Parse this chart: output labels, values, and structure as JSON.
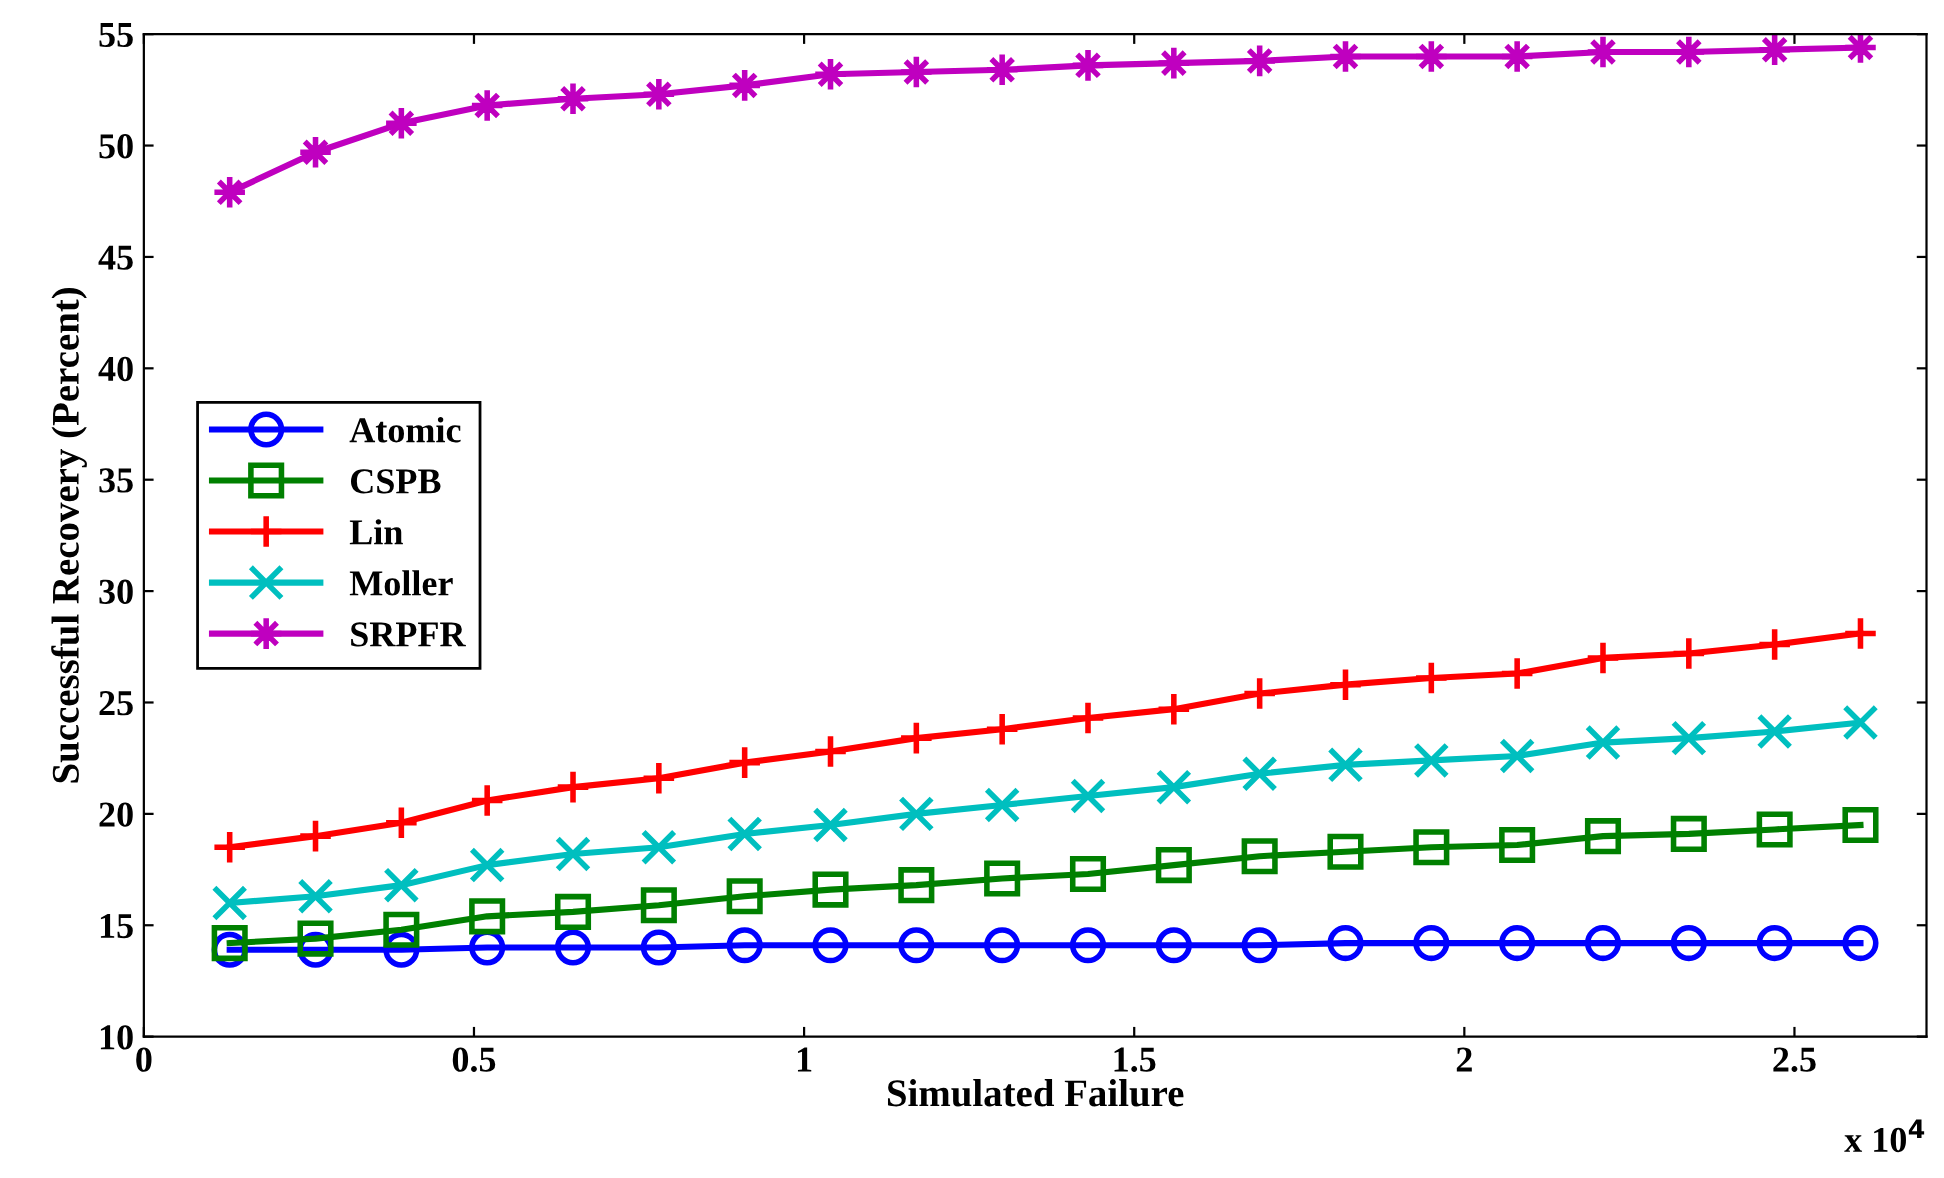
{
  "chart_data": {
    "type": "line",
    "xlabel": "Simulated Failure",
    "ylabel": "Successful Recovery (Percent)",
    "annotations": [
      "x 10$^{4}$"
    ],
    "x": [
      0.13,
      0.26,
      0.39,
      0.52,
      0.65,
      0.78,
      0.91,
      1.04,
      1.17,
      1.3,
      1.43,
      1.56,
      1.69,
      1.82,
      1.95,
      2.08,
      2.21,
      2.34,
      2.47,
      2.6
    ],
    "xlim": [
      0,
      2.7
    ],
    "xticks": [
      0,
      0.5,
      1,
      1.5,
      2,
      2.5
    ],
    "ylim": [
      10,
      55
    ],
    "yticks": [
      10,
      15,
      20,
      25,
      30,
      35,
      40,
      45,
      50,
      55
    ],
    "grid": false,
    "legend": "left",
    "line_style": "solid",
    "series": [
      {
        "name": "Atomic",
        "color": "#0000ff",
        "marker": "circle",
        "values": [
          13.9,
          13.9,
          13.9,
          14.0,
          14.0,
          14.0,
          14.1,
          14.1,
          14.1,
          14.1,
          14.1,
          14.1,
          14.1,
          14.2,
          14.2,
          14.2,
          14.2,
          14.2,
          14.2,
          14.2
        ]
      },
      {
        "name": "CSPB",
        "color": "#008000",
        "marker": "square",
        "values": [
          14.2,
          14.4,
          14.8,
          15.4,
          15.6,
          15.9,
          16.3,
          16.6,
          16.8,
          17.1,
          17.3,
          17.7,
          18.1,
          18.3,
          18.5,
          18.6,
          19.0,
          19.1,
          19.3,
          19.5
        ]
      },
      {
        "name": "Lin",
        "color": "#ff0000",
        "marker": "cross",
        "values": [
          18.5,
          19.0,
          19.6,
          20.6,
          21.2,
          21.6,
          22.3,
          22.8,
          23.4,
          23.8,
          24.3,
          24.7,
          25.4,
          25.8,
          26.1,
          26.3,
          27.0,
          27.2,
          27.6,
          28.1
        ]
      },
      {
        "name": "Moller",
        "color": "#00bfbf",
        "marker": "x",
        "values": [
          16.0,
          16.3,
          16.8,
          17.7,
          18.2,
          18.5,
          19.1,
          19.5,
          20.0,
          20.4,
          20.8,
          21.2,
          21.8,
          22.2,
          22.4,
          22.6,
          23.2,
          23.4,
          23.7,
          24.1
        ]
      },
      {
        "name": "SRPFR",
        "color": "#bf00bf",
        "marker": "star",
        "values": [
          47.9,
          49.7,
          51.0,
          51.8,
          52.1,
          52.3,
          52.7,
          53.2,
          53.3,
          53.4,
          53.6,
          53.7,
          53.8,
          54.0,
          54.0,
          54.0,
          54.2,
          54.2,
          54.3,
          54.4
        ]
      }
    ]
  }
}
